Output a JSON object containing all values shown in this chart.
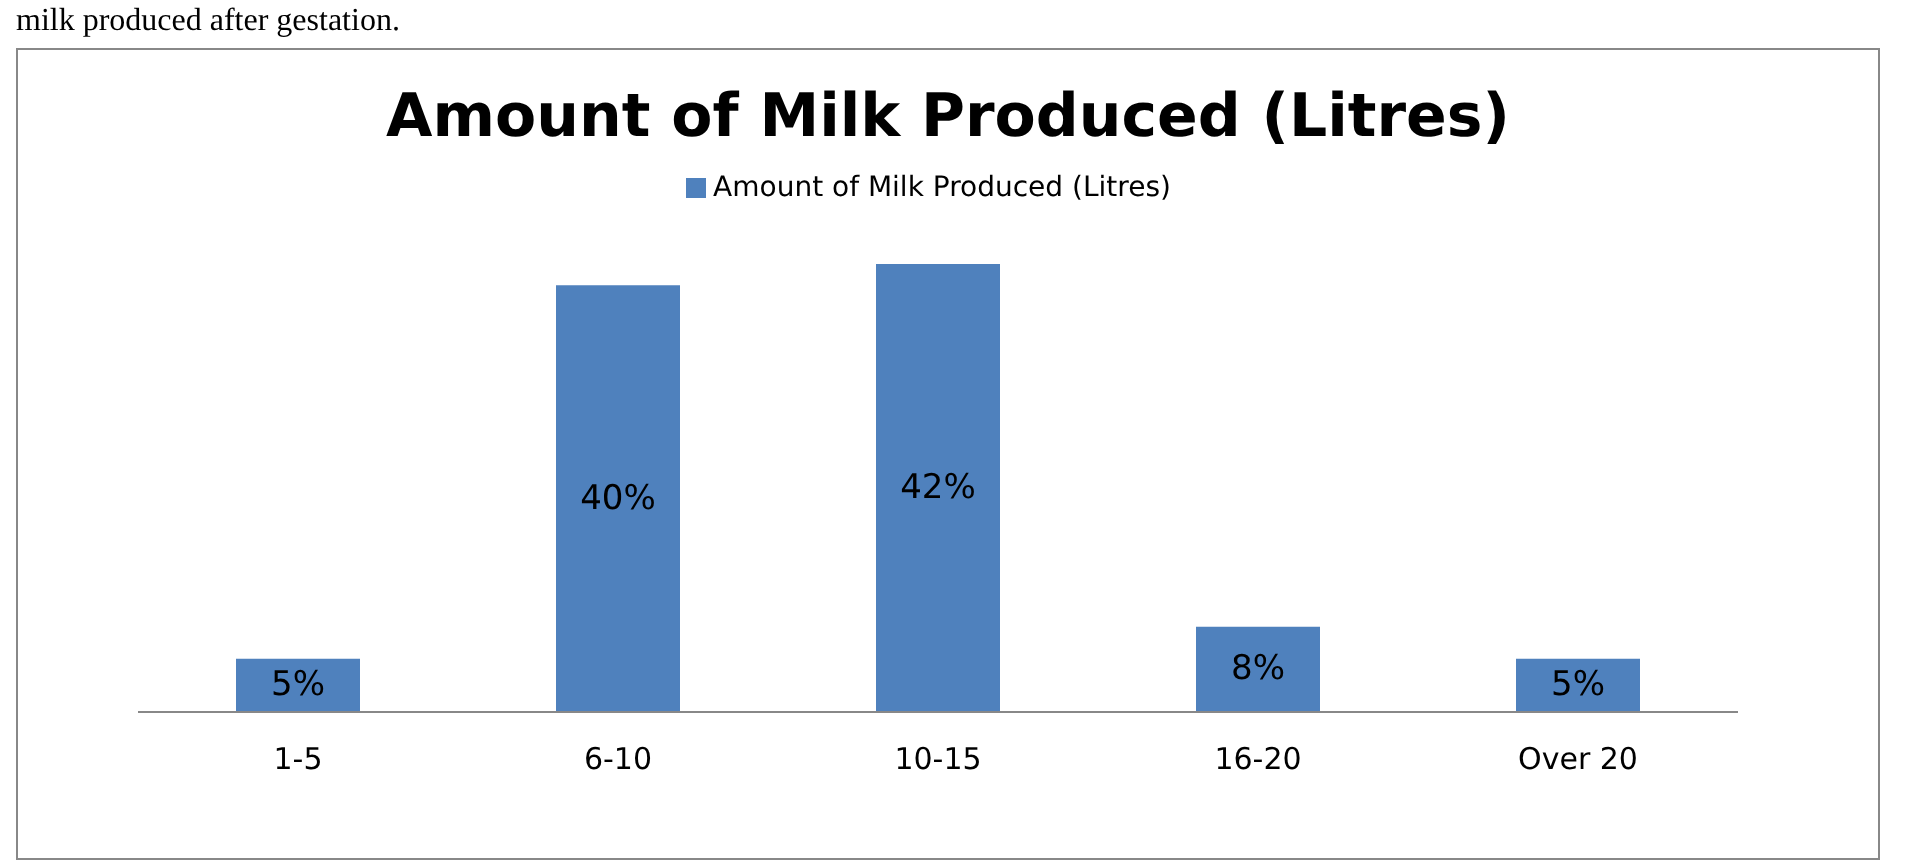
{
  "chart_data": {
    "type": "bar",
    "title": "Amount of Milk Produced (Litres)",
    "annotations": [
      "milk produced after gestation."
    ],
    "categories": [
      "1-5",
      "6-10",
      "10-15",
      "16-20",
      "Over 20"
    ],
    "series": [
      {
        "name": "Amount of Milk Produced (Litres)",
        "color": "#4f81bd",
        "values": [
          5,
          40,
          42,
          8,
          5
        ],
        "value_labels": [
          "5%",
          "40%",
          "42%",
          "8%",
          "5%"
        ]
      }
    ],
    "legend": "top",
    "grid": false
  }
}
